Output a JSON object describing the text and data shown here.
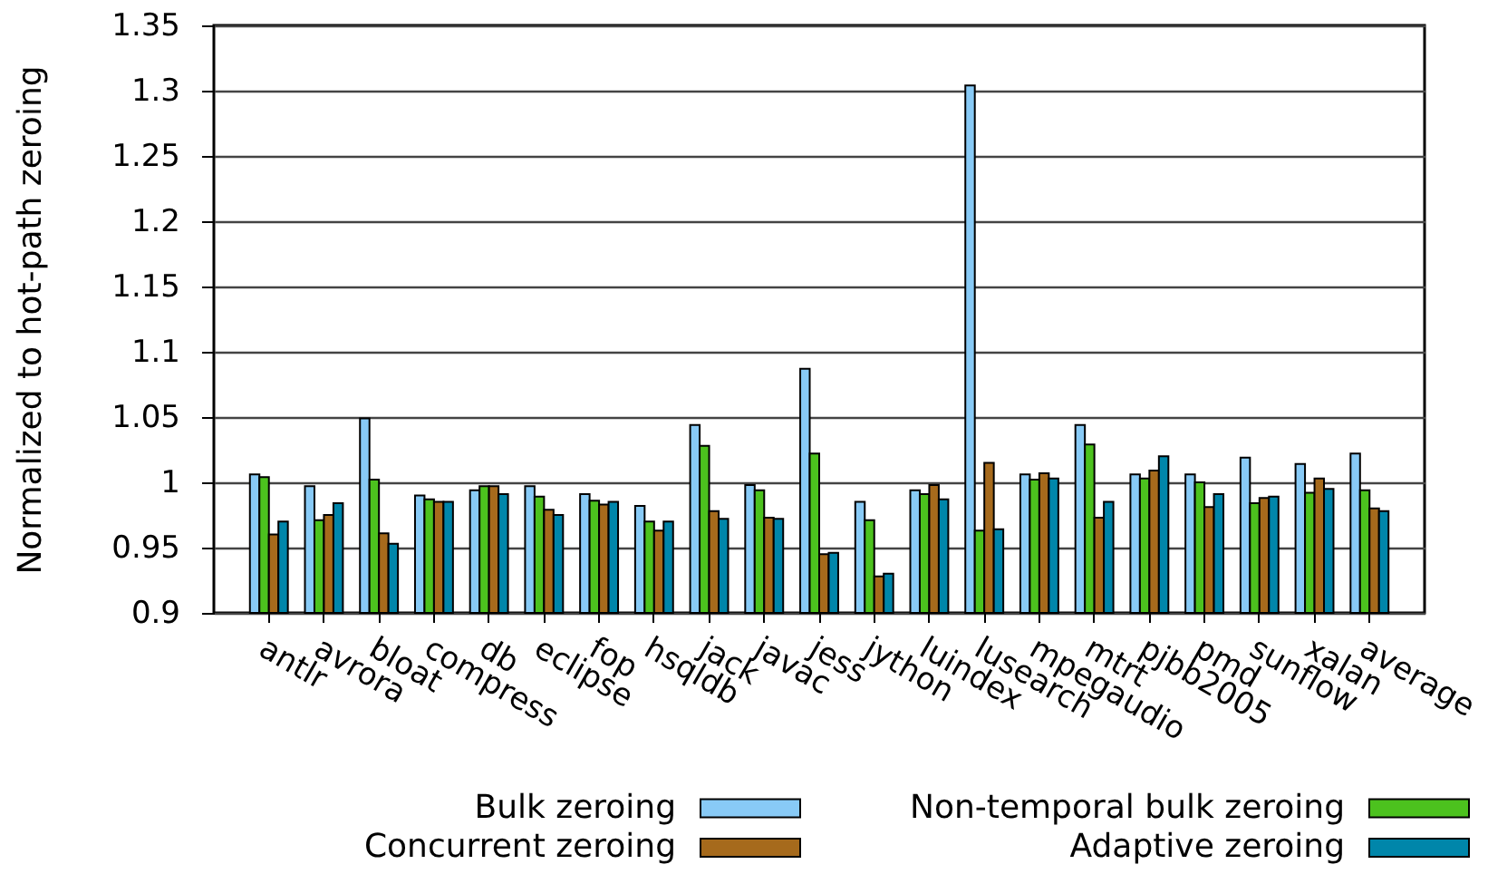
{
  "chart_data": {
    "type": "bar",
    "ylabel": "Normalized to hot-path zeroing",
    "categories": [
      "antlr",
      "avrora",
      "bloat",
      "compress",
      "db",
      "eclipse",
      "fop",
      "hsqldb",
      "jack",
      "javac",
      "jess",
      "jython",
      "luindex",
      "lusearch",
      "mpegaudio",
      "mtrt",
      "pjbb2005",
      "pmd",
      "sunflow",
      "xalan",
      "average"
    ],
    "series": [
      {
        "name": "Bulk zeroing",
        "color": "#88caf6",
        "values": [
          1.006,
          0.997,
          1.049,
          0.99,
          0.994,
          0.997,
          0.991,
          0.982,
          1.044,
          0.998,
          1.087,
          0.985,
          0.994,
          1.304,
          1.006,
          1.044,
          1.006,
          1.006,
          1.019,
          1.014,
          1.022
        ]
      },
      {
        "name": "Non-temporal bulk zeroing",
        "color": "#4cc21e",
        "values": [
          1.004,
          0.971,
          1.002,
          0.987,
          0.997,
          0.989,
          0.986,
          0.97,
          1.028,
          0.994,
          1.022,
          0.971,
          0.991,
          0.963,
          1.002,
          1.029,
          1.003,
          1.0,
          0.984,
          0.992,
          0.994
        ]
      },
      {
        "name": "Concurrent zeroing",
        "color": "#a66a1c",
        "values": [
          0.96,
          0.975,
          0.961,
          0.985,
          0.997,
          0.979,
          0.983,
          0.963,
          0.978,
          0.973,
          0.945,
          0.928,
          0.998,
          1.015,
          1.007,
          0.973,
          1.009,
          0.981,
          0.988,
          1.003,
          0.98
        ]
      },
      {
        "name": "Adaptive zeroing",
        "color": "#0086aa",
        "values": [
          0.97,
          0.984,
          0.953,
          0.985,
          0.991,
          0.975,
          0.985,
          0.97,
          0.972,
          0.972,
          0.946,
          0.93,
          0.987,
          0.964,
          1.003,
          0.985,
          1.02,
          0.991,
          0.989,
          0.995,
          0.978
        ]
      }
    ],
    "ylim": [
      0.9,
      1.35
    ],
    "yticks": [
      0.9,
      0.95,
      1,
      1.05,
      1.1,
      1.15,
      1.2,
      1.25,
      1.3,
      1.35
    ],
    "grid": "y",
    "legend": "bottom"
  }
}
